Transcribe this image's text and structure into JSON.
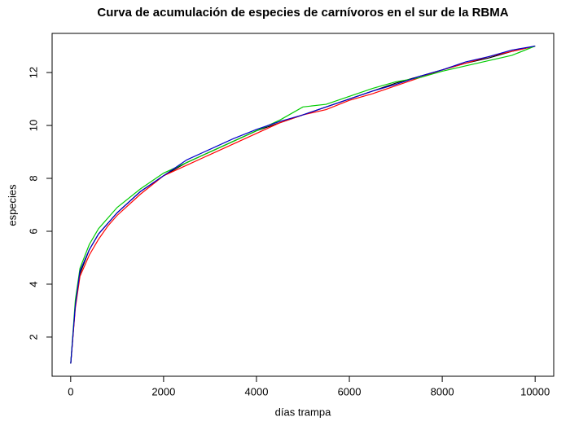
{
  "chart_data": {
    "type": "line",
    "title": "Curva de acumulación de especies de carnívoros en el sur de la RBMA",
    "x_label": "días trampa",
    "y_label": "especies",
    "x": [
      1,
      100,
      200,
      400,
      600,
      800,
      1000,
      1500,
      2000,
      2500,
      3000,
      3500,
      4000,
      4500,
      5000,
      5500,
      6000,
      6500,
      7000,
      7500,
      8000,
      8500,
      9000,
      9500,
      10000
    ],
    "series": [
      {
        "color": "#000000",
        "values": [
          1,
          3.2,
          4.4,
          5.3,
          5.9,
          6.3,
          6.7,
          7.5,
          8.1,
          8.6,
          9.0,
          9.4,
          9.8,
          10.1,
          10.4,
          10.7,
          11.0,
          11.3,
          11.6,
          11.85,
          12.1,
          12.35,
          12.55,
          12.8,
          13
        ]
      },
      {
        "color": "#ff0000",
        "values": [
          1,
          3.1,
          4.3,
          5.1,
          5.7,
          6.2,
          6.6,
          7.4,
          8.1,
          8.5,
          8.9,
          9.3,
          9.7,
          10.1,
          10.4,
          10.6,
          10.95,
          11.2,
          11.5,
          11.8,
          12.1,
          12.35,
          12.6,
          12.8,
          13
        ]
      },
      {
        "color": "#00cc00",
        "values": [
          1,
          3.4,
          4.6,
          5.5,
          6.1,
          6.5,
          6.9,
          7.6,
          8.2,
          8.6,
          9.0,
          9.4,
          9.8,
          10.2,
          10.7,
          10.8,
          11.1,
          11.4,
          11.65,
          11.8,
          12.05,
          12.25,
          12.45,
          12.65,
          13
        ]
      },
      {
        "color": "#0000cc",
        "values": [
          1,
          3.2,
          4.5,
          5.3,
          5.9,
          6.3,
          6.7,
          7.5,
          8.1,
          8.7,
          9.1,
          9.5,
          9.85,
          10.15,
          10.4,
          10.7,
          11.0,
          11.3,
          11.55,
          11.85,
          12.1,
          12.4,
          12.6,
          12.85,
          13
        ]
      }
    ],
    "xlim": [
      -400,
      10400
    ],
    "ylim": [
      0.52,
      13.48
    ],
    "xticks": [
      0,
      2000,
      4000,
      6000,
      8000,
      10000
    ],
    "yticks": [
      2,
      4,
      6,
      8,
      10,
      12
    ]
  }
}
